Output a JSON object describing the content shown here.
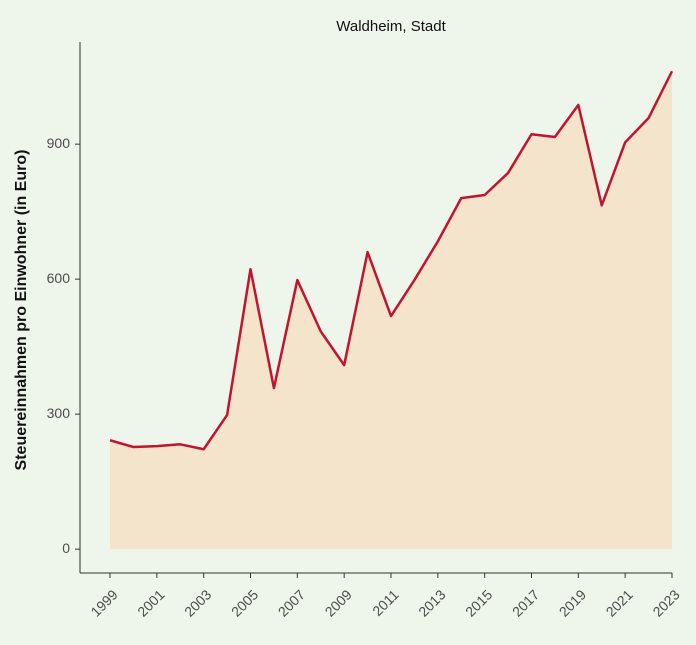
{
  "chart_data": {
    "type": "area",
    "title": "Waldheim, Stadt",
    "y_label": "Steuereinnahmen pro Einwohner (in Euro)",
    "x": [
      1999,
      2000,
      2001,
      2002,
      2003,
      2004,
      2005,
      2006,
      2007,
      2008,
      2009,
      2010,
      2011,
      2012,
      2013,
      2014,
      2015,
      2016,
      2017,
      2018,
      2019,
      2020,
      2021,
      2022,
      2023
    ],
    "values": [
      242,
      227,
      229,
      233,
      222,
      298,
      622,
      358,
      598,
      484,
      409,
      660,
      518,
      598,
      684,
      780,
      787,
      836,
      922,
      916,
      987,
      764,
      904,
      958,
      1062
    ],
    "color": "#c0152f",
    "fill_color": "#f5e4cc",
    "xlim": [
      1999,
      2023
    ],
    "xticks": [
      1999,
      2001,
      2003,
      2005,
      2007,
      2009,
      2011,
      2013,
      2015,
      2017,
      2019,
      2021,
      2023
    ],
    "ylim": [
      -53,
      1127
    ],
    "yticks": [
      0,
      300,
      600,
      900
    ]
  }
}
